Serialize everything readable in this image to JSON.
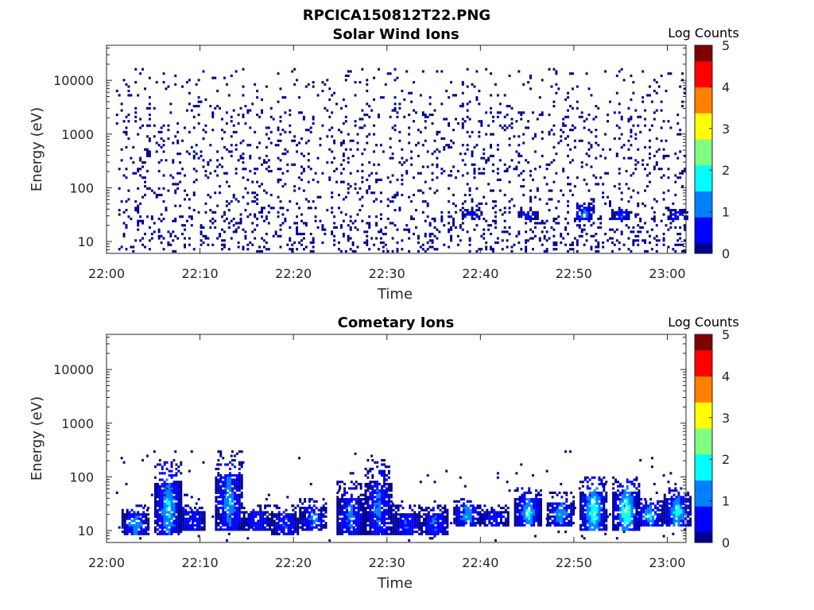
{
  "figure": {
    "title": "RPCICA150812T22.PNG"
  },
  "colormap": [
    "#00008f",
    "#0000ff",
    "#0080ff",
    "#00ffff",
    "#80ff80",
    "#ffff00",
    "#ff8000",
    "#ff0000",
    "#800000"
  ],
  "chart_data": [
    {
      "type": "heatmap",
      "title": "Solar Wind Ions",
      "xlabel": "Time",
      "ylabel": "Energy (eV)",
      "x_ticks": [
        "22:00",
        "22:10",
        "22:20",
        "22:30",
        "22:40",
        "22:50",
        "23:00"
      ],
      "y_ticks": [
        "10",
        "100",
        "1000",
        "10000"
      ],
      "y_scale": "log",
      "xlim": [
        "22:00",
        "23:02"
      ],
      "ylim": [
        6,
        45000
      ],
      "colorbar": {
        "label": "Log Counts",
        "ticks": [
          "0",
          "1",
          "2",
          "3",
          "4",
          "5"
        ],
        "range": [
          0,
          5
        ]
      },
      "events": [
        {
          "t": "22:39",
          "e_min": 25,
          "e_max": 40,
          "peak": 1.0
        },
        {
          "t": "22:45",
          "e_min": 25,
          "e_max": 40,
          "peak": 1.0
        },
        {
          "t": "22:51",
          "e_min": 25,
          "e_max": 50,
          "peak": 1.6
        },
        {
          "t": "22:55",
          "e_min": 25,
          "e_max": 40,
          "peak": 1.1
        },
        {
          "t": "23:01",
          "e_min": 25,
          "e_max": 40,
          "peak": 1.0
        }
      ]
    },
    {
      "type": "heatmap",
      "title": "Cometary Ions",
      "xlabel": "Time",
      "ylabel": "Energy (eV)",
      "x_ticks": [
        "22:00",
        "22:10",
        "22:20",
        "22:30",
        "22:40",
        "22:50",
        "23:00"
      ],
      "y_ticks": [
        "10",
        "100",
        "1000",
        "10000"
      ],
      "y_scale": "log",
      "xlim": [
        "22:00",
        "23:02"
      ],
      "ylim": [
        6,
        45000
      ],
      "colorbar": {
        "label": "Log Counts",
        "ticks": [
          "0",
          "1",
          "2",
          "3",
          "4",
          "5"
        ],
        "range": [
          0,
          5
        ]
      },
      "events": [
        {
          "t": "22:03",
          "e_min": 8,
          "e_max": 30,
          "peak": 1.6
        },
        {
          "t": "22:06.5",
          "e_min": 8,
          "e_max": 200,
          "peak": 1.9
        },
        {
          "t": "22:09",
          "e_min": 10,
          "e_max": 30,
          "peak": 1.0
        },
        {
          "t": "22:13",
          "e_min": 10,
          "e_max": 300,
          "peak": 1.6
        },
        {
          "t": "22:16",
          "e_min": 10,
          "e_max": 30,
          "peak": 1.0
        },
        {
          "t": "22:19",
          "e_min": 8,
          "e_max": 30,
          "peak": 1.1
        },
        {
          "t": "22:22",
          "e_min": 10,
          "e_max": 40,
          "peak": 1.3
        },
        {
          "t": "22:26",
          "e_min": 8,
          "e_max": 80,
          "peak": 1.4
        },
        {
          "t": "22:29",
          "e_min": 8,
          "e_max": 200,
          "peak": 1.3
        },
        {
          "t": "22:32",
          "e_min": 8,
          "e_max": 30,
          "peak": 1.0
        },
        {
          "t": "22:35",
          "e_min": 8,
          "e_max": 30,
          "peak": 1.2
        },
        {
          "t": "22:38.5",
          "e_min": 12,
          "e_max": 40,
          "peak": 1.8
        },
        {
          "t": "22:41.5",
          "e_min": 12,
          "e_max": 30,
          "peak": 1.0
        },
        {
          "t": "22:45",
          "e_min": 12,
          "e_max": 60,
          "peak": 2.0
        },
        {
          "t": "22:48.5",
          "e_min": 12,
          "e_max": 50,
          "peak": 1.7
        },
        {
          "t": "22:52",
          "e_min": 10,
          "e_max": 100,
          "peak": 2.4
        },
        {
          "t": "22:55.5",
          "e_min": 10,
          "e_max": 100,
          "peak": 2.6
        },
        {
          "t": "22:58",
          "e_min": 12,
          "e_max": 40,
          "peak": 1.9
        },
        {
          "t": "23:01",
          "e_min": 12,
          "e_max": 60,
          "peak": 2.1
        }
      ]
    }
  ]
}
